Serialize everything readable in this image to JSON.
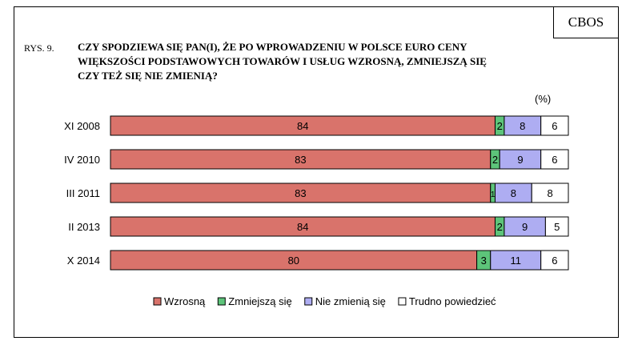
{
  "header": {
    "badge": "CBOS",
    "figure_number": "RYS. 9.",
    "title_lines": [
      "CZY SPODZIEWA SIĘ PAN(I), ŻE PO WPROWADZENIU W POLSCE EURO CENY",
      "WIĘKSZOŚCI PODSTAWOWYCH TOWARÓW I USŁUG WZROSNĄ, ZMNIEJSZĄ SIĘ",
      "CZY TEŻ SIĘ NIE ZMIENIĄ?"
    ],
    "unit": "(%)"
  },
  "chart_data": {
    "type": "bar",
    "orientation": "horizontal",
    "stacked": true,
    "legend_position": "bottom",
    "categories": [
      "XI 2008",
      "IV 2010",
      "III 2011",
      "II 2013",
      "X 2014"
    ],
    "xlim": [
      0,
      100
    ],
    "series": [
      {
        "name": "Wzrosną",
        "color": "#d9736b",
        "values": [
          84,
          83,
          83,
          84,
          80
        ]
      },
      {
        "name": "Zmniejszą się",
        "color": "#5dc47a",
        "values": [
          2,
          2,
          1,
          2,
          3
        ]
      },
      {
        "name": "Nie zmienią się",
        "color": "#aeadf2",
        "values": [
          8,
          9,
          8,
          9,
          11
        ]
      },
      {
        "name": "Trudno powiedzieć",
        "color": "#ffffff",
        "values": [
          6,
          6,
          8,
          5,
          6
        ]
      }
    ]
  }
}
